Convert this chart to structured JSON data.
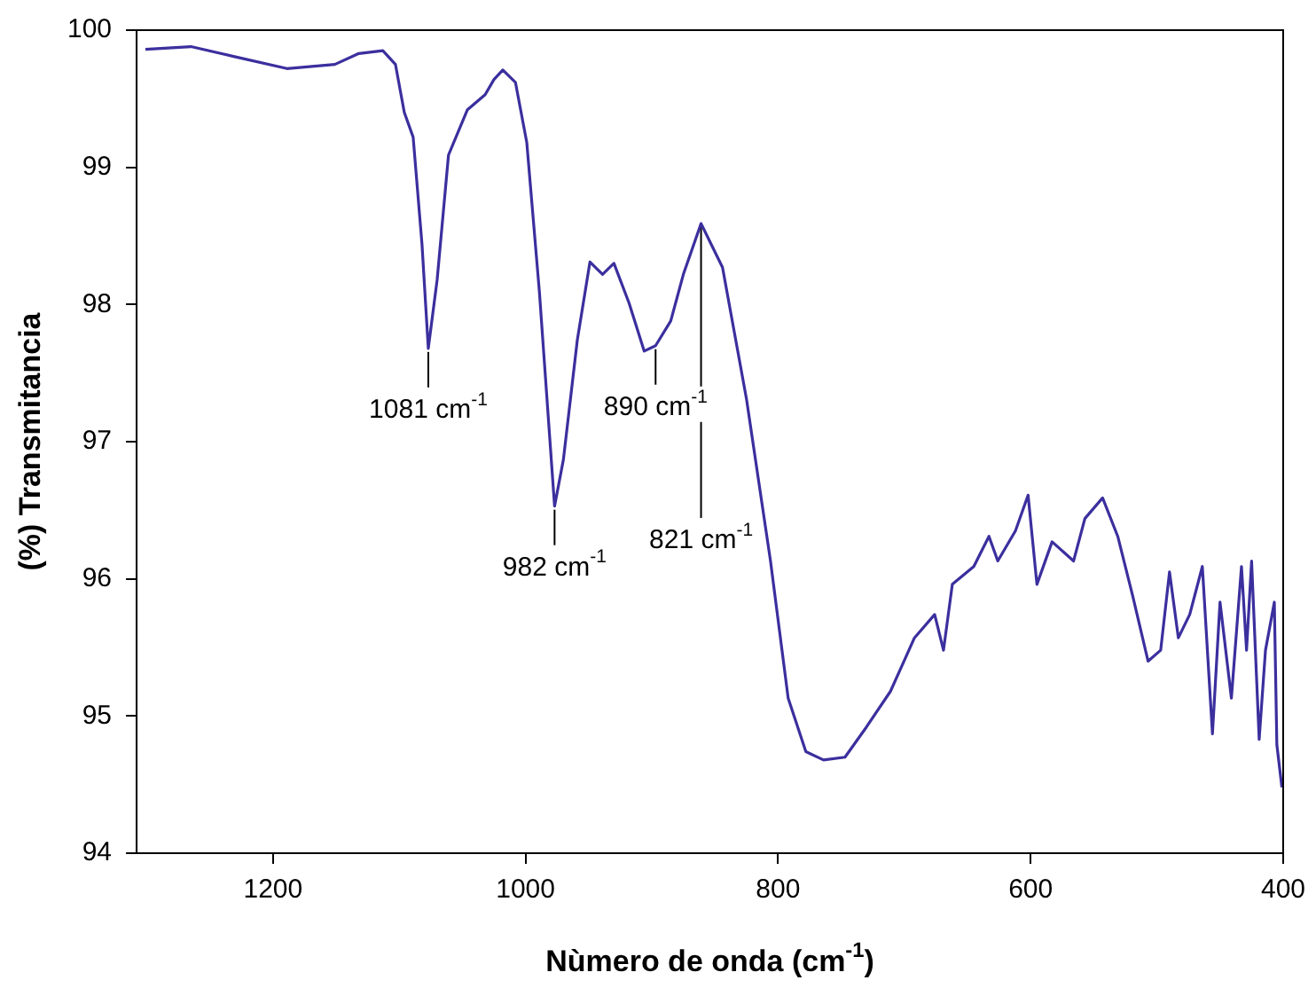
{
  "chart_data": {
    "type": "line",
    "xlabel": "Nùmero de onda (cm$^{-1}$)",
    "ylabel": "(%) Transmitancia",
    "xlim": [
      1308,
      400
    ],
    "xticks": [
      1200,
      1000,
      800,
      600,
      400
    ],
    "ylim": [
      94,
      100
    ],
    "yticks": [
      94,
      95,
      96,
      97,
      98,
      99,
      100
    ],
    "grid": false,
    "legend": false,
    "x": [
      1301,
      1265,
      1232,
      1189,
      1151,
      1132,
      1113,
      1103,
      1096,
      1089,
      1082,
      1077,
      1070,
      1061,
      1046,
      1032,
      1025,
      1018,
      1008,
      999,
      989,
      977,
      970,
      959,
      949,
      939,
      930,
      918,
      906,
      897,
      885,
      875,
      861,
      844,
      825,
      806,
      792,
      778,
      764,
      747,
      730,
      711,
      692,
      676,
      669,
      662,
      645,
      633,
      626,
      612,
      602,
      595,
      583,
      566,
      557,
      543,
      531,
      519,
      507,
      497,
      490,
      483,
      474,
      464,
      456,
      450,
      441,
      433,
      429,
      425,
      419,
      414,
      407,
      405,
      401
    ],
    "series": [
      {
        "color": "#3b2f9e",
        "values": [
          99.86,
          99.88,
          99.81,
          99.72,
          99.75,
          99.83,
          99.85,
          99.75,
          99.4,
          99.22,
          98.44,
          97.68,
          98.18,
          99.09,
          99.42,
          99.53,
          99.64,
          99.71,
          99.62,
          99.18,
          98.09,
          96.53,
          96.87,
          97.74,
          98.31,
          98.22,
          98.3,
          98.01,
          97.66,
          97.7,
          97.88,
          98.22,
          98.59,
          98.27,
          97.31,
          96.13,
          95.13,
          94.74,
          94.68,
          94.7,
          94.92,
          95.18,
          95.57,
          95.74,
          95.48,
          95.96,
          96.09,
          96.31,
          96.13,
          96.35,
          96.61,
          95.96,
          96.27,
          96.13,
          96.44,
          96.59,
          96.31,
          95.87,
          95.4,
          95.48,
          96.05,
          95.57,
          95.74,
          96.09,
          94.87,
          95.83,
          95.13,
          96.09,
          95.48,
          96.13,
          94.83,
          95.48,
          95.83,
          94.79,
          94.48
        ]
      }
    ],
    "annotations": [
      {
        "text": "1081 cm$^{-1}$",
        "x": 1077,
        "y": 97.68
      },
      {
        "text": "982 cm$^{-1}$",
        "x": 977,
        "y": 96.53
      },
      {
        "text": "890 cm$^{-1}$",
        "x": 897,
        "y": 97.7
      },
      {
        "text": "821 cm$^{-1}$",
        "x": 861,
        "y": 98.59
      }
    ]
  }
}
